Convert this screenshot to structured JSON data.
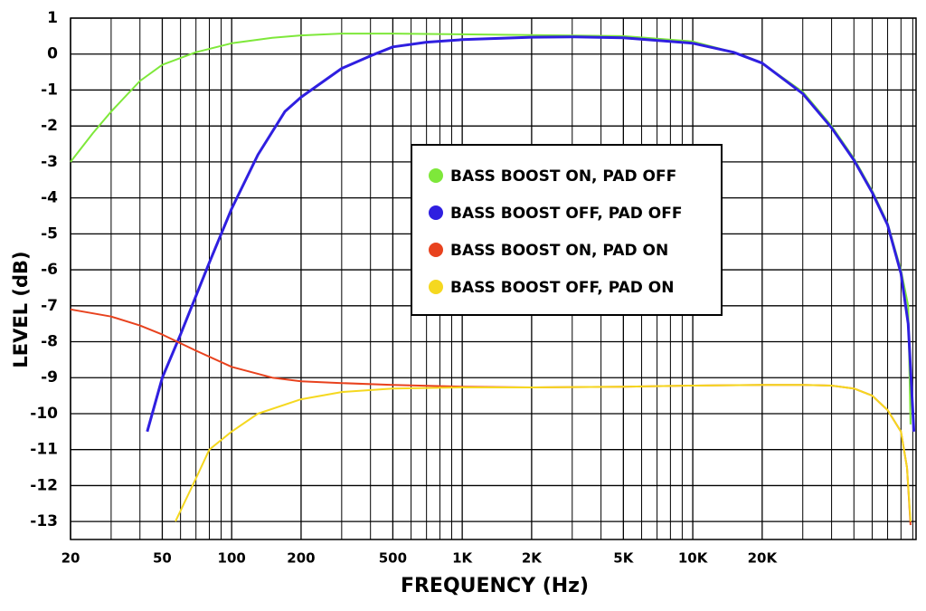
{
  "chart_data": {
    "type": "line",
    "xlabel": "FREQUENCY (Hz)",
    "ylabel": "LEVEL (dB)",
    "xscale": "log",
    "grid": true,
    "xlim": [
      20,
      93000
    ],
    "ylim": [
      -13.5,
      1
    ],
    "xticks": [
      20,
      50,
      100,
      200,
      500,
      {
        "value": 1000,
        "label": "1K"
      },
      {
        "value": 2000,
        "label": "2K"
      },
      {
        "value": 5000,
        "label": "5K"
      },
      {
        "value": 10000,
        "label": "10K"
      },
      {
        "value": 20000,
        "label": "20K"
      }
    ],
    "x_minor_grid": [
      30,
      40,
      60,
      70,
      80,
      90,
      300,
      400,
      600,
      700,
      800,
      900,
      3000,
      4000,
      6000,
      7000,
      8000,
      9000,
      30000,
      40000,
      50000,
      60000,
      70000,
      80000,
      90000
    ],
    "yticks": [
      1,
      0,
      -1,
      -2,
      -3,
      -4,
      -5,
      -6,
      -7,
      -8,
      -9,
      -10,
      -11,
      -12,
      -13
    ],
    "legend_position": "center",
    "series": [
      {
        "name": "BASS BOOST ON, PAD OFF",
        "color": "#7ee83a",
        "x": [
          20,
          25,
          30,
          40,
          50,
          70,
          100,
          150,
          200,
          300,
          500,
          1000,
          2000,
          5000,
          10000,
          15000,
          20000,
          30000,
          40000,
          50000,
          60000,
          70000,
          80000,
          86000,
          88000
        ],
        "values": [
          -3,
          -2.2,
          -1.6,
          -0.75,
          -0.3,
          0.05,
          0.3,
          0.45,
          0.52,
          0.57,
          0.57,
          0.55,
          0.53,
          0.5,
          0.35,
          0.05,
          -0.25,
          -1.05,
          -2,
          -2.9,
          -3.8,
          -4.7,
          -6,
          -7,
          -10.3
        ]
      },
      {
        "name": "BASS BOOST OFF, PAD OFF",
        "color": "#2f1fe0",
        "x": [
          43,
          50,
          60,
          80,
          100,
          130,
          170,
          200,
          300,
          400,
          500,
          700,
          1000,
          2000,
          3000,
          5000,
          10000,
          15000,
          20000,
          30000,
          40000,
          50000,
          60000,
          70000,
          80000,
          86000,
          91000
        ],
        "values": [
          -10.5,
          -9,
          -7.8,
          -5.8,
          -4.3,
          -2.8,
          -1.6,
          -1.2,
          -0.4,
          -0.05,
          0.2,
          0.33,
          0.4,
          0.47,
          0.48,
          0.45,
          0.3,
          0.05,
          -0.25,
          -1.1,
          -2.05,
          -2.95,
          -3.85,
          -4.75,
          -6.1,
          -7.5,
          -10.5
        ]
      },
      {
        "name": "BASS BOOST ON, PAD ON",
        "color": "#e8421e",
        "x": [
          20,
          30,
          40,
          50,
          70,
          100,
          150,
          200,
          300,
          500,
          1000,
          2000,
          5000,
          10000,
          20000,
          30000,
          40000,
          50000,
          60000,
          70000,
          80000,
          85000,
          88000
        ],
        "values": [
          -7.1,
          -7.3,
          -7.55,
          -7.8,
          -8.25,
          -8.7,
          -9,
          -9.1,
          -9.15,
          -9.2,
          -9.25,
          -9.27,
          -9.25,
          -9.22,
          -9.2,
          -9.2,
          -9.22,
          -9.3,
          -9.5,
          -9.9,
          -10.5,
          -11.5,
          -13.1
        ]
      },
      {
        "name": "BASS BOOST OFF, PAD ON",
        "color": "#f5d820",
        "x": [
          57,
          70,
          80,
          100,
          130,
          200,
          300,
          500,
          1000,
          2000,
          5000,
          10000,
          20000,
          30000,
          40000,
          50000,
          60000,
          70000,
          80000,
          85000,
          88000
        ],
        "values": [
          -13,
          -11.8,
          -11,
          -10.5,
          -10,
          -9.6,
          -9.4,
          -9.3,
          -9.27,
          -9.27,
          -9.25,
          -9.22,
          -9.2,
          -9.2,
          -9.22,
          -9.3,
          -9.5,
          -9.9,
          -10.5,
          -11.5,
          -13
        ]
      }
    ]
  }
}
